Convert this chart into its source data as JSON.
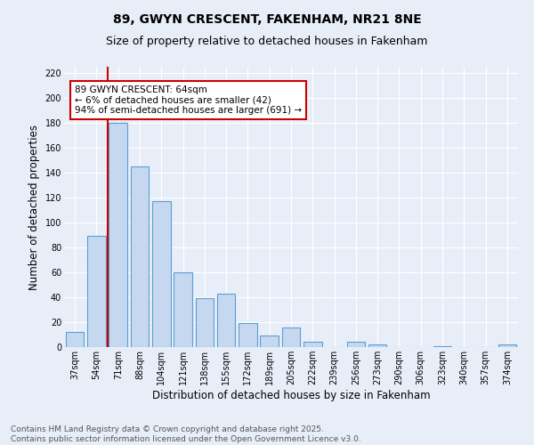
{
  "title": "89, GWYN CRESCENT, FAKENHAM, NR21 8NE",
  "subtitle": "Size of property relative to detached houses in Fakenham",
  "xlabel": "Distribution of detached houses by size in Fakenham",
  "ylabel": "Number of detached properties",
  "categories": [
    "37sqm",
    "54sqm",
    "71sqm",
    "88sqm",
    "104sqm",
    "121sqm",
    "138sqm",
    "155sqm",
    "172sqm",
    "189sqm",
    "205sqm",
    "222sqm",
    "239sqm",
    "256sqm",
    "273sqm",
    "290sqm",
    "306sqm",
    "323sqm",
    "340sqm",
    "357sqm",
    "374sqm"
  ],
  "values": [
    12,
    89,
    180,
    145,
    117,
    60,
    39,
    43,
    19,
    9,
    16,
    4,
    0,
    4,
    2,
    0,
    0,
    1,
    0,
    0,
    2
  ],
  "bar_color": "#c5d8f0",
  "bar_edge_color": "#5a9fd4",
  "vline_index": 2,
  "vline_color": "#cc0000",
  "annotation_text": "89 GWYN CRESCENT: 64sqm\n← 6% of detached houses are smaller (42)\n94% of semi-detached houses are larger (691) →",
  "annotation_box_color": "#ffffff",
  "annotation_box_edge": "#cc0000",
  "ylim": [
    0,
    225
  ],
  "yticks": [
    0,
    20,
    40,
    60,
    80,
    100,
    120,
    140,
    160,
    180,
    200,
    220
  ],
  "background_color": "#e8eef8",
  "grid_color": "#ffffff",
  "footer_line1": "Contains HM Land Registry data © Crown copyright and database right 2025.",
  "footer_line2": "Contains public sector information licensed under the Open Government Licence v3.0.",
  "title_fontsize": 10,
  "subtitle_fontsize": 9,
  "tick_fontsize": 7,
  "ylabel_fontsize": 8.5,
  "xlabel_fontsize": 8.5,
  "annotation_fontsize": 7.5,
  "footer_fontsize": 6.5
}
